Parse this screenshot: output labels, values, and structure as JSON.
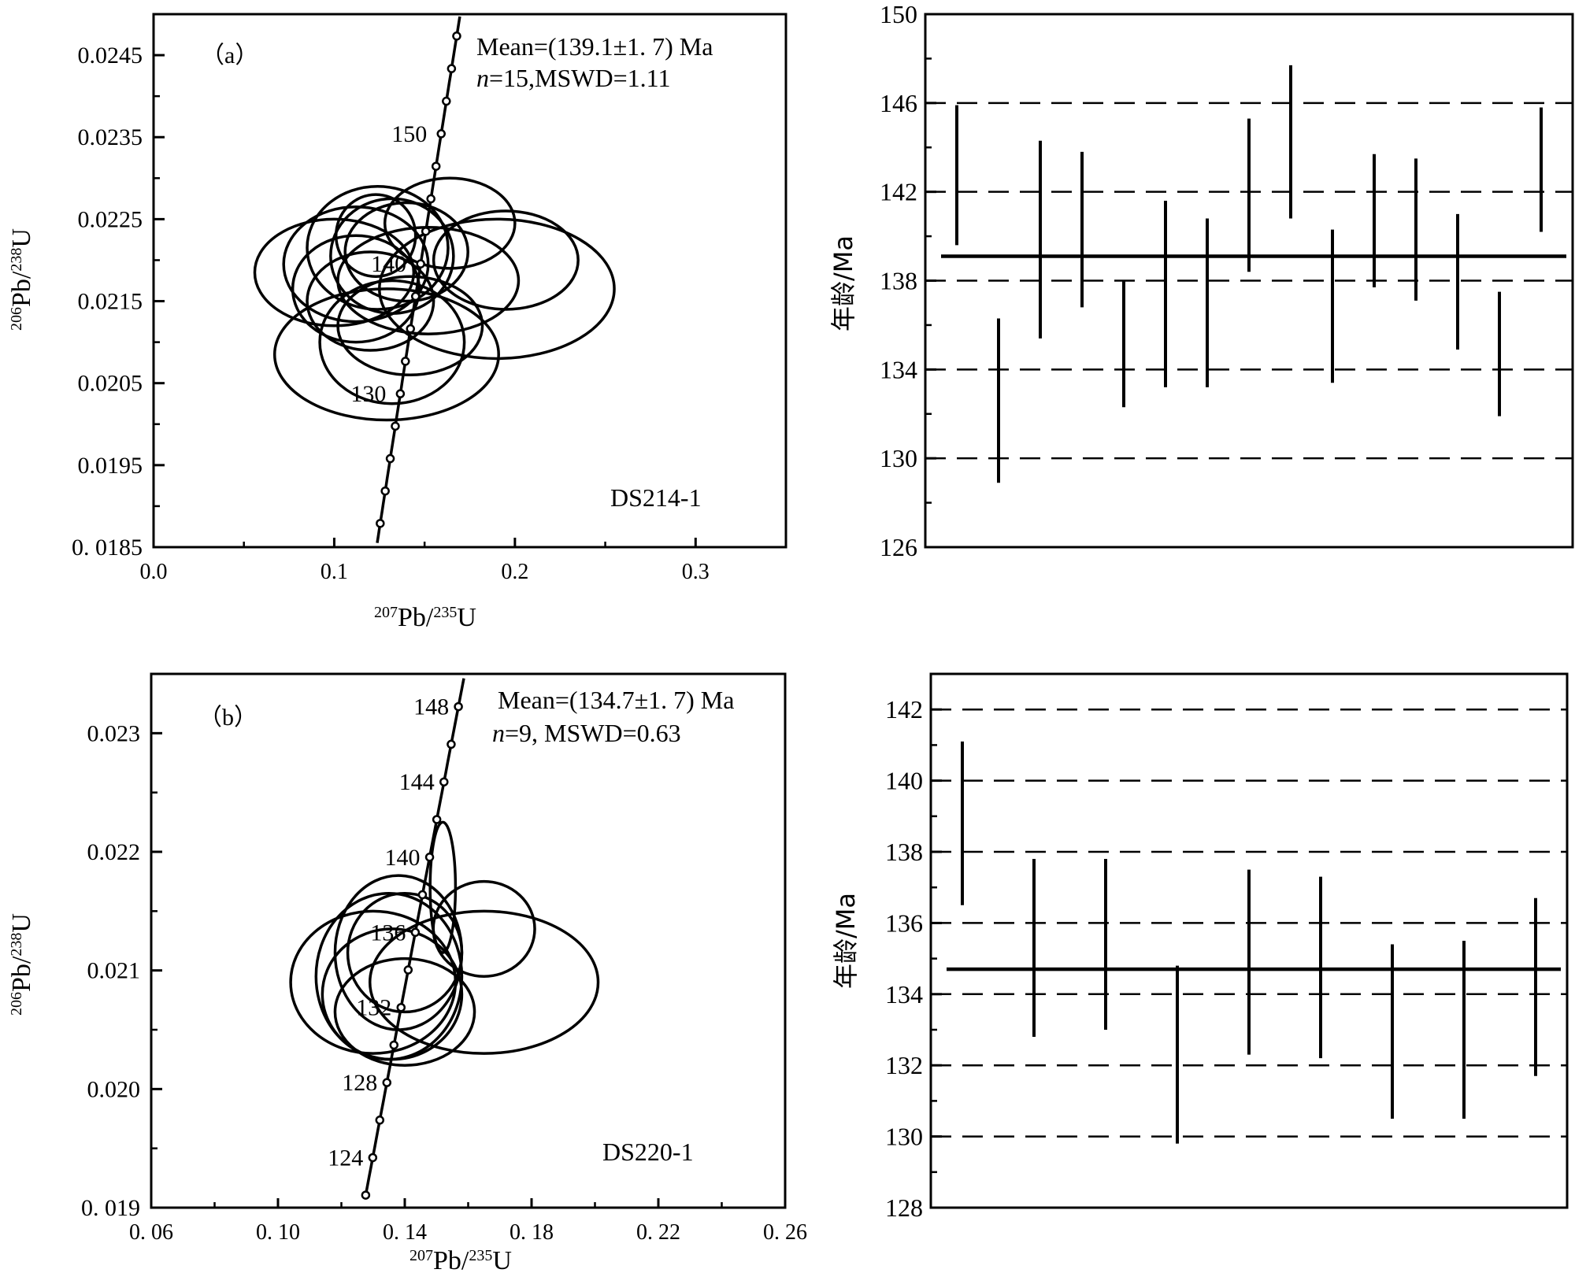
{
  "chart_data": [
    {
      "panel": "a",
      "type": "scatter",
      "subtype": "concordia",
      "panel_label": "（a）",
      "sample": "DS214-1",
      "annotation_line1": "Mean=(139.1±1. 7) Ma",
      "annotation_line2_italic": "n",
      "annotation_line2_rest": "=15,MSWD=1.11",
      "xlabel": {
        "sup1": "207",
        "main": "Pb/",
        "sup2": "235",
        "end": "U"
      },
      "ylabel": {
        "sup1": "206",
        "main": "Pb/",
        "sup2": "238",
        "end": "U"
      },
      "xlim": [
        0.0,
        0.35
      ],
      "ylim": [
        0.0185,
        0.025
      ],
      "x_ticks": [
        0.0,
        0.1,
        0.2,
        0.3
      ],
      "x_tick_labels": [
        "0.0",
        "0.1",
        "0.2",
        "0.3"
      ],
      "y_ticks": [
        0.0185,
        0.0195,
        0.0205,
        0.0215,
        0.0225,
        0.0235,
        0.0245
      ],
      "y_tick_labels": [
        "0. 0185",
        "0.0195",
        "0.0205",
        "0.0215",
        "0.0225",
        "0.0235",
        "0.0245"
      ],
      "concordia_age_labels": [
        {
          "age": 150,
          "text": "150"
        },
        {
          "age": 140,
          "text": "140"
        },
        {
          "age": 130,
          "text": "130"
        }
      ],
      "ellipses": [
        {
          "cx": 0.1,
          "cy": 0.02185,
          "rx": 0.044,
          "ry": 0.00065
        },
        {
          "cx": 0.112,
          "cy": 0.02195,
          "rx": 0.04,
          "ry": 0.0007
        },
        {
          "cx": 0.124,
          "cy": 0.02215,
          "rx": 0.039,
          "ry": 0.00075
        },
        {
          "cx": 0.12,
          "cy": 0.0215,
          "rx": 0.035,
          "ry": 0.0006
        },
        {
          "cx": 0.132,
          "cy": 0.02205,
          "rx": 0.034,
          "ry": 0.0007
        },
        {
          "cx": 0.123,
          "cy": 0.0223,
          "rx": 0.022,
          "ry": 0.0005
        },
        {
          "cx": 0.14,
          "cy": 0.0221,
          "rx": 0.034,
          "ry": 0.0006
        },
        {
          "cx": 0.164,
          "cy": 0.02245,
          "rx": 0.036,
          "ry": 0.00055
        },
        {
          "cx": 0.195,
          "cy": 0.022,
          "rx": 0.04,
          "ry": 0.0006
        },
        {
          "cx": 0.19,
          "cy": 0.02165,
          "rx": 0.065,
          "ry": 0.00085
        },
        {
          "cx": 0.152,
          "cy": 0.02175,
          "rx": 0.05,
          "ry": 0.00065
        },
        {
          "cx": 0.142,
          "cy": 0.0212,
          "rx": 0.04,
          "ry": 0.0006
        },
        {
          "cx": 0.132,
          "cy": 0.021,
          "rx": 0.04,
          "ry": 0.00075
        },
        {
          "cx": 0.129,
          "cy": 0.02085,
          "rx": 0.062,
          "ry": 0.0008
        },
        {
          "cx": 0.112,
          "cy": 0.02165,
          "rx": 0.035,
          "ry": 0.00065
        }
      ]
    },
    {
      "panel": "a",
      "type": "bar",
      "subtype": "error_bars",
      "ylabel": "年龄/Ma",
      "ylim": [
        126,
        150
      ],
      "y_ticks": [
        126,
        130,
        134,
        138,
        142,
        146,
        150
      ],
      "y_tick_labels": [
        "126",
        "130",
        "134",
        "138",
        "142",
        "146",
        "150"
      ],
      "dashed_lines": [
        130,
        134,
        138,
        142,
        146
      ],
      "mean": 139.1,
      "bars": [
        [
          139.6,
          145.9
        ],
        [
          128.9,
          136.3
        ],
        [
          135.4,
          144.3
        ],
        [
          136.8,
          143.8
        ],
        [
          132.3,
          138.0
        ],
        [
          133.2,
          141.6
        ],
        [
          133.2,
          140.8
        ],
        [
          138.4,
          145.3
        ],
        [
          140.8,
          147.7
        ],
        [
          133.4,
          140.3
        ],
        [
          137.7,
          143.7
        ],
        [
          137.1,
          143.5
        ],
        [
          134.9,
          141.0
        ],
        [
          131.9,
          137.5
        ],
        [
          140.2,
          145.8
        ]
      ]
    },
    {
      "panel": "b",
      "type": "scatter",
      "subtype": "concordia",
      "panel_label": "（b）",
      "sample": "DS220-1",
      "annotation_line1": "Mean=(134.7±1. 7) Ma",
      "annotation_line2_italic": "n",
      "annotation_line2_rest": "=9, MSWD=0.63",
      "xlabel": {
        "sup1": "207",
        "main": "Pb/",
        "sup2": "235",
        "end": "U"
      },
      "ylabel": {
        "sup1": "206",
        "main": "Pb/",
        "sup2": "238",
        "end": "U"
      },
      "xlim": [
        0.06,
        0.26
      ],
      "ylim": [
        0.019,
        0.0235
      ],
      "x_ticks": [
        0.06,
        0.1,
        0.14,
        0.18,
        0.22,
        0.26
      ],
      "x_tick_labels": [
        "0. 06",
        "0. 10",
        "0. 14",
        "0. 18",
        "0. 22",
        "0. 26"
      ],
      "y_ticks": [
        0.019,
        0.02,
        0.021,
        0.022,
        0.023
      ],
      "y_tick_labels": [
        "0. 019",
        "0.020",
        "0.021",
        "0.022",
        "0.023"
      ],
      "concordia_age_labels": [
        {
          "age": 148,
          "text": "148"
        },
        {
          "age": 144,
          "text": "144"
        },
        {
          "age": 140,
          "text": "140"
        },
        {
          "age": 136,
          "text": "136"
        },
        {
          "age": 132,
          "text": "132"
        },
        {
          "age": 128,
          "text": "128"
        },
        {
          "age": 124,
          "text": "124"
        }
      ],
      "ellipses": [
        {
          "cx": 0.13,
          "cy": 0.0209,
          "rx": 0.026,
          "ry": 0.0006
        },
        {
          "cx": 0.135,
          "cy": 0.02095,
          "rx": 0.023,
          "ry": 0.0007
        },
        {
          "cx": 0.138,
          "cy": 0.02115,
          "rx": 0.02,
          "ry": 0.00065
        },
        {
          "cx": 0.136,
          "cy": 0.0208,
          "rx": 0.022,
          "ry": 0.00055
        },
        {
          "cx": 0.14,
          "cy": 0.02115,
          "rx": 0.018,
          "ry": 0.0005
        },
        {
          "cx": 0.165,
          "cy": 0.0209,
          "rx": 0.036,
          "ry": 0.0006
        },
        {
          "cx": 0.165,
          "cy": 0.02135,
          "rx": 0.016,
          "ry": 0.0004
        },
        {
          "cx": 0.14,
          "cy": 0.02065,
          "rx": 0.022,
          "ry": 0.00045
        },
        {
          "cx": 0.152,
          "cy": 0.0217,
          "rx": 0.004,
          "ry": 0.00055
        }
      ]
    },
    {
      "panel": "b",
      "type": "bar",
      "subtype": "error_bars",
      "ylabel": "年龄/Ma",
      "ylim": [
        128,
        143
      ],
      "y_ticks": [
        128,
        130,
        132,
        134,
        136,
        138,
        140,
        142
      ],
      "y_tick_labels": [
        "128",
        "130",
        "132",
        "134",
        "136",
        "138",
        "140",
        "142"
      ],
      "dashed_lines": [
        130,
        132,
        134,
        136,
        138,
        140,
        142
      ],
      "mean": 134.7,
      "bars": [
        [
          136.5,
          141.1
        ],
        [
          132.8,
          137.8
        ],
        [
          133.0,
          137.8
        ],
        [
          129.8,
          134.8
        ],
        [
          132.3,
          137.5
        ],
        [
          132.2,
          137.3
        ],
        [
          130.5,
          135.4
        ],
        [
          130.5,
          135.5
        ],
        [
          131.7,
          136.7
        ]
      ]
    }
  ]
}
